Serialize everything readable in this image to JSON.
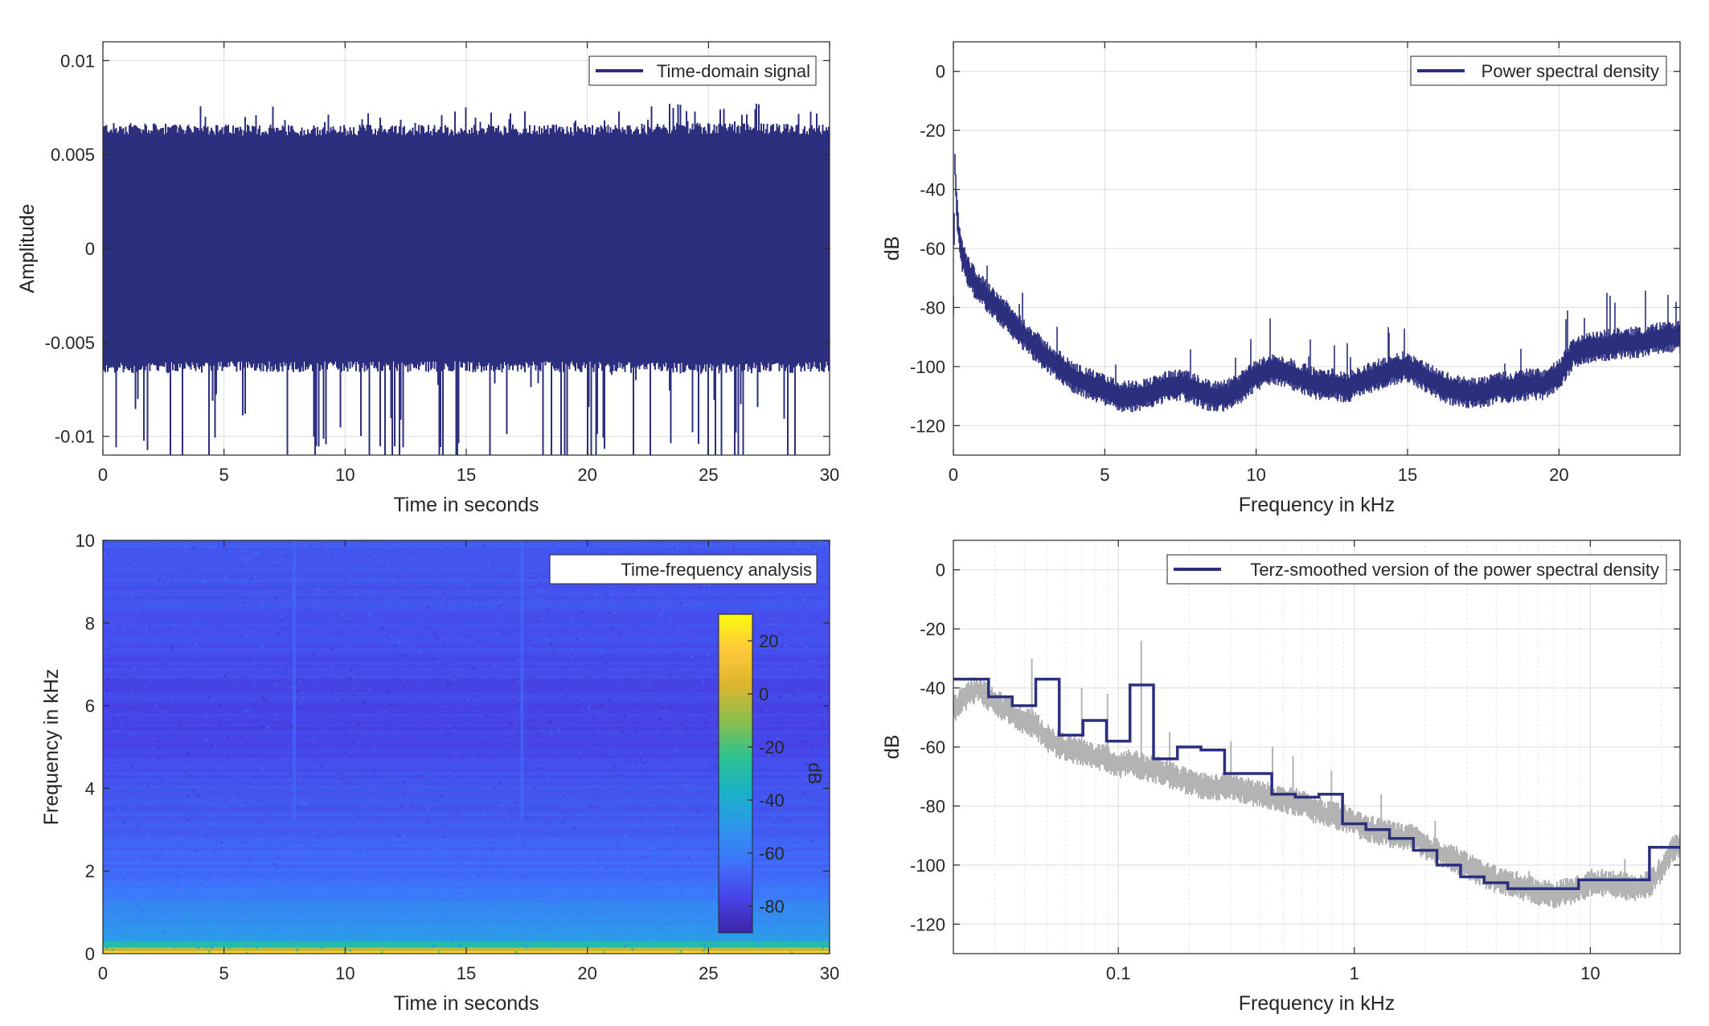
{
  "colors": {
    "signal": "#2b2f7e",
    "raw_psd": "#b3b3b3",
    "axis": "#262626",
    "grid": "#dcdcdc",
    "colormap": [
      "#3e26a8",
      "#4744e8",
      "#3e73fb",
      "#2e97ec",
      "#19b2c5",
      "#30c38e",
      "#8dbe4a",
      "#dcb52e",
      "#fec83a",
      "#f9fb0e"
    ]
  },
  "chart_data": [
    {
      "type": "line",
      "panel": "top-left",
      "legend": "Time-domain signal",
      "legend_position": "top-right",
      "xlabel": "Time in seconds",
      "ylabel": "Amplitude",
      "xlim": [
        0,
        30
      ],
      "ylim": [
        -0.011,
        0.011
      ],
      "xticks": [
        0,
        5,
        10,
        15,
        20,
        25,
        30
      ],
      "xtick_labels": [
        "0",
        "5",
        "10",
        "15",
        "20",
        "25",
        "30"
      ],
      "yticks": [
        -0.01,
        -0.005,
        0,
        0.005,
        0.01
      ],
      "ytick_labels": [
        "-0.01",
        "-0.005",
        "0",
        "0.005",
        "0.01"
      ],
      "grid": true,
      "series": [
        {
          "color_key": "signal",
          "envelope": {
            "t": [
              0,
              5,
              10,
              15,
              20,
              25,
              30
            ],
            "max": [
              0.0077,
              0.0077,
              0.0075,
              0.0078,
              0.0076,
              0.008,
              0.0074
            ],
            "min": [
              -0.0076,
              -0.0078,
              -0.0077,
              -0.0092,
              -0.0079,
              -0.008,
              -0.0075
            ],
            "core": [
              0.0061,
              0.006,
              0.006,
              0.006,
              0.006,
              0.0061,
              0.006
            ]
          }
        }
      ]
    },
    {
      "type": "line",
      "panel": "top-right",
      "legend": "Power spectral density",
      "legend_position": "top-right",
      "xlabel": "Frequency in kHz",
      "ylabel": "dB",
      "xlim": [
        0,
        24
      ],
      "ylim": [
        -130,
        10
      ],
      "xticks": [
        0,
        5,
        10,
        15,
        20
      ],
      "xtick_labels": [
        "0",
        "5",
        "10",
        "15",
        "20"
      ],
      "yticks": [
        -120,
        -100,
        -80,
        -60,
        -40,
        -20,
        0
      ],
      "ytick_labels": [
        "-120",
        "-100",
        "-80",
        "-60",
        "-40",
        "-20",
        "0"
      ],
      "grid": true,
      "series": [
        {
          "color_key": "signal",
          "x": [
            0,
            0.05,
            0.1,
            0.2,
            0.3,
            0.5,
            0.8,
            1,
            1.5,
            2,
            2.5,
            3,
            3.5,
            4,
            4.5,
            5,
            5.5,
            6,
            6.5,
            7,
            7.5,
            8,
            8.5,
            9,
            9.5,
            10,
            10.5,
            11,
            11.5,
            12,
            12.5,
            13,
            13.5,
            14,
            14.5,
            15,
            15.5,
            16,
            16.5,
            17,
            17.5,
            18,
            18.5,
            19,
            19.5,
            20,
            20.5,
            21,
            21.5,
            22,
            22.5,
            23,
            23.5,
            24
          ],
          "y": [
            -80,
            -30,
            -45,
            -57,
            -63,
            -68,
            -73,
            -75,
            -80,
            -86,
            -91,
            -96,
            -100,
            -104,
            -106,
            -108,
            -110,
            -110,
            -109,
            -107,
            -106,
            -108,
            -110,
            -110,
            -107,
            -103,
            -101,
            -102,
            -104,
            -106,
            -106,
            -107,
            -105,
            -103,
            -101,
            -100,
            -103,
            -106,
            -108,
            -109,
            -109,
            -107,
            -107,
            -106,
            -106,
            -103,
            -95,
            -94,
            -93,
            -92,
            -92,
            -91,
            -90,
            -90
          ],
          "spread": 5
        }
      ]
    },
    {
      "type": "heatmap",
      "panel": "bottom-left",
      "legend": "Time-frequency analysis",
      "legend_position": "top-right",
      "xlabel": "Time in seconds",
      "ylabel": "Frequency in kHz",
      "xlim": [
        0,
        30
      ],
      "ylim": [
        0,
        10
      ],
      "xticks": [
        0,
        5,
        10,
        15,
        20,
        25,
        30
      ],
      "xtick_labels": [
        "0",
        "5",
        "10",
        "15",
        "20",
        "25",
        "30"
      ],
      "yticks": [
        0,
        2,
        4,
        6,
        8,
        10
      ],
      "ytick_labels": [
        "0",
        "2",
        "4",
        "6",
        "8",
        "10"
      ],
      "colorbar": {
        "label": "dB",
        "clim": [
          -90,
          30
        ],
        "ticks": [
          -80,
          -60,
          -40,
          -20,
          0,
          20
        ],
        "tick_labels": [
          "-80",
          "-60",
          "-40",
          "-20",
          "0",
          "20"
        ]
      },
      "level_vs_frequency": {
        "f_khz": [
          0,
          0.1,
          0.2,
          0.5,
          1,
          1.5,
          2,
          3,
          4,
          5,
          6,
          7,
          8,
          9,
          10
        ],
        "db": [
          -10,
          -30,
          -45,
          -50,
          -55,
          -60,
          -66,
          -70,
          -72,
          -76,
          -77,
          -75,
          -73,
          -72,
          -71
        ]
      },
      "vertical_streaks_s": [
        7.9,
        17.3
      ]
    },
    {
      "type": "line",
      "panel": "bottom-right",
      "legend": "Terz-smoothed version of the power spectral density",
      "legend_position": "top-right",
      "xlabel": "Frequency in kHz",
      "ylabel": "dB",
      "xscale": "log",
      "xlim": [
        0.02,
        24
      ],
      "ylim": [
        -130,
        10
      ],
      "xticks": [
        0.1,
        1,
        10
      ],
      "xtick_labels": [
        "0.1",
        "1",
        "10"
      ],
      "yticks": [
        -120,
        -100,
        -80,
        -60,
        -40,
        -20,
        0
      ],
      "ytick_labels": [
        "-120",
        "-100",
        "-80",
        "-60",
        "-40",
        "-20",
        "0"
      ],
      "grid": true,
      "series": [
        {
          "role": "raw",
          "color_key": "raw_psd",
          "x": [
            0.02,
            0.025,
            0.03,
            0.035,
            0.04,
            0.045,
            0.05,
            0.055,
            0.06,
            0.07,
            0.08,
            0.09,
            0.1,
            0.11,
            0.12,
            0.13,
            0.15,
            0.17,
            0.2,
            0.25,
            0.3,
            0.35,
            0.4,
            0.5,
            0.6,
            0.7,
            0.8,
            0.9,
            1,
            1.2,
            1.5,
            1.8,
            2,
            2.5,
            3,
            3.5,
            4,
            5,
            6,
            7,
            8,
            9,
            10,
            12,
            14,
            16,
            18,
            20,
            22,
            24
          ],
          "y": [
            -47,
            -40,
            -45,
            -48,
            -51,
            -53,
            -57,
            -59,
            -60,
            -62,
            -63,
            -64,
            -66,
            -65,
            -66,
            -67,
            -68,
            -70,
            -72,
            -74,
            -73,
            -75,
            -76,
            -78,
            -79,
            -82,
            -83,
            -84,
            -86,
            -88,
            -90,
            -91,
            -94,
            -97,
            -100,
            -103,
            -105,
            -107,
            -109,
            -110,
            -109,
            -108,
            -106,
            -106,
            -107,
            -108,
            -106,
            -102,
            -95,
            -93
          ],
          "spread": 4,
          "spikes": [
            [
              0.043,
              -30
            ],
            [
              0.07,
              -40
            ],
            [
              0.09,
              -42
            ],
            [
              0.125,
              -24
            ],
            [
              0.165,
              -55
            ],
            [
              0.3,
              -58
            ],
            [
              0.45,
              -60
            ],
            [
              0.55,
              -63
            ],
            [
              0.8,
              -68
            ],
            [
              1.3,
              -76
            ],
            [
              2.2,
              -85
            ],
            [
              5.5,
              -102
            ],
            [
              14,
              -98
            ],
            [
              22,
              -92
            ]
          ]
        },
        {
          "role": "terz",
          "color_key": "signal",
          "steps": [
            [
              0.02,
              0.0282,
              -37
            ],
            [
              0.0282,
              0.0355,
              -43
            ],
            [
              0.0355,
              0.0447,
              -46
            ],
            [
              0.0447,
              0.0562,
              -37
            ],
            [
              0.0562,
              0.0708,
              -56
            ],
            [
              0.0708,
              0.0891,
              -51
            ],
            [
              0.0891,
              0.112,
              -58
            ],
            [
              0.112,
              0.141,
              -39
            ],
            [
              0.141,
              0.178,
              -64
            ],
            [
              0.178,
              0.224,
              -60
            ],
            [
              0.224,
              0.282,
              -61
            ],
            [
              0.282,
              0.355,
              -69
            ],
            [
              0.355,
              0.447,
              -69
            ],
            [
              0.447,
              0.562,
              -76
            ],
            [
              0.562,
              0.708,
              -77
            ],
            [
              0.708,
              0.891,
              -76
            ],
            [
              0.891,
              1.12,
              -86
            ],
            [
              1.12,
              1.41,
              -88
            ],
            [
              1.41,
              1.78,
              -91
            ],
            [
              1.78,
              2.24,
              -95
            ],
            [
              2.24,
              2.82,
              -100
            ],
            [
              2.82,
              3.55,
              -104
            ],
            [
              3.55,
              4.47,
              -106
            ],
            [
              4.47,
              5.62,
              -108
            ],
            [
              5.62,
              7.08,
              -108
            ],
            [
              7.08,
              8.91,
              -108
            ],
            [
              8.91,
              11.2,
              -105
            ],
            [
              11.2,
              14.1,
              -105
            ],
            [
              14.1,
              17.8,
              -105
            ],
            [
              17.8,
              24,
              -94
            ]
          ]
        }
      ]
    }
  ]
}
